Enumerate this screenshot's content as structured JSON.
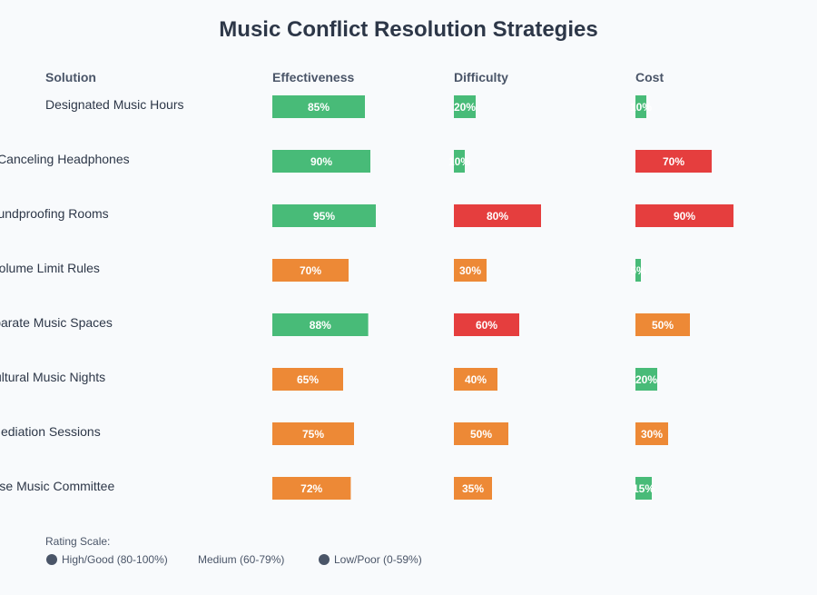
{
  "chart_data": {
    "type": "table",
    "title": "Music Conflict Resolution Strategies",
    "columns": [
      "Solution",
      "Effectiveness",
      "Difficulty",
      "Cost"
    ],
    "rows": [
      {
        "solution": "Designated Music Hours",
        "effectiveness": 85,
        "difficulty": 20,
        "cost": 10
      },
      {
        "solution": "Noise Canceling Headphones",
        "effectiveness": 90,
        "difficulty": 10,
        "cost": 70
      },
      {
        "solution": "Soundproofing Rooms",
        "effectiveness": 95,
        "difficulty": 80,
        "cost": 90
      },
      {
        "solution": "Volume Limit Rules",
        "effectiveness": 70,
        "difficulty": 30,
        "cost": 5
      },
      {
        "solution": "Separate Music Spaces",
        "effectiveness": 88,
        "difficulty": 60,
        "cost": 50
      },
      {
        "solution": "Cultural Music Nights",
        "effectiveness": 65,
        "difficulty": 40,
        "cost": 20
      },
      {
        "solution": "Mediation Sessions",
        "effectiveness": 75,
        "difficulty": 50,
        "cost": 30
      },
      {
        "solution": "House Music Committee",
        "effectiveness": 72,
        "difficulty": 35,
        "cost": 15
      }
    ],
    "colors": {
      "good": "#48bb78",
      "medium": "#ed8936",
      "poor": "#e53e3e"
    },
    "legend": {
      "title": "Rating Scale:",
      "items": [
        "High/Good (80-100%)",
        "Medium (60-79%)",
        "Low/Poor (0-59%)"
      ],
      "marker_color": "#4a5568"
    }
  }
}
